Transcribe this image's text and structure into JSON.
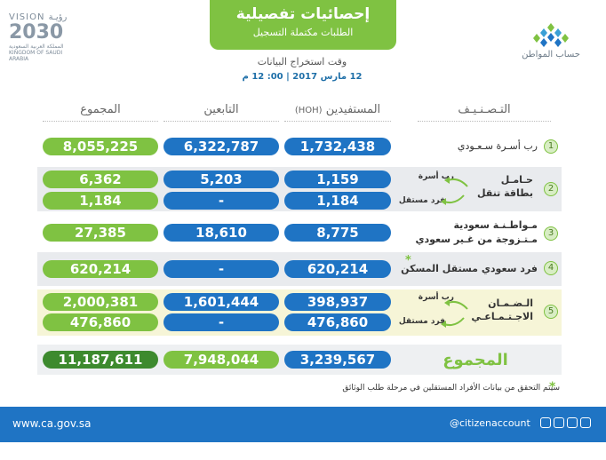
{
  "header": {
    "title": "إحصائيات تفصيلية",
    "subtitle": "الطلبات مكتملة التسجيل",
    "extract_label": "وقت استخراج البيانات",
    "extract_date": "12 مارس 2017 | 00: 12 م"
  },
  "vision": {
    "top": "VISION رؤيـة",
    "num": "2030",
    "line1": "المملكة العربية السعودية",
    "line2": "KINGDOM OF SAUDI ARABIA"
  },
  "brand": {
    "name": "حساب المواطن"
  },
  "columns": {
    "category": "التـصـنـيـف",
    "beneficiaries": "المستفيدين",
    "hoh": "(HOH)",
    "dependents": "التابعين",
    "total": "المجموع"
  },
  "rows": {
    "r1": {
      "num": "1",
      "label": "رب أسـرة سـعـودي",
      "ben": "1,732,438",
      "dep": "6,322,787",
      "total": "8,055,225"
    },
    "r2": {
      "num": "2",
      "label_a": "حـامـل",
      "label_b": "بطاقة تنقل",
      "sub_a": "رب أسرة",
      "sub_b": "فرد مستقل",
      "ben_a": "1,159",
      "dep_a": "5,203",
      "total_a": "6,362",
      "ben_b": "1,184",
      "dep_b": "-",
      "total_b": "1,184"
    },
    "r3": {
      "num": "3",
      "label_a": "مـواطـنـة سعودية",
      "label_b": "مـتـزوجة من غـير سعودي",
      "ben": "8,775",
      "dep": "18,610",
      "total": "27,385"
    },
    "r4": {
      "num": "4",
      "label": "فرد سعودي مستقل المسكن",
      "star": "*",
      "ben": "620,214",
      "dep": "-",
      "total": "620,214"
    },
    "r5": {
      "num": "5",
      "label_a": "الـضـمـان",
      "label_b": "الاجـتـمـاعـي",
      "sub_a": "رب أسرة",
      "sub_b": "فرد مستقل",
      "ben_a": "398,937",
      "dep_a": "1,601,444",
      "total_a": "2,000,381",
      "ben_b": "476,860",
      "dep_b": "-",
      "total_b": "476,860"
    }
  },
  "grand_total": {
    "label": "المجموع",
    "ben": "3,239,567",
    "dep": "7,948,044",
    "total": "11,187,611"
  },
  "footnote": {
    "star": "*",
    "text": "سيتم التحقق من بيانات الأفراد المستقلين في مرحلة طلب الوثائق"
  },
  "footer": {
    "url": "www.ca.gov.sa",
    "handle": "@citizenaccount"
  },
  "colors": {
    "green": "#7fc242",
    "blue": "#1f74c4",
    "dark_green": "#3d8a2e"
  }
}
